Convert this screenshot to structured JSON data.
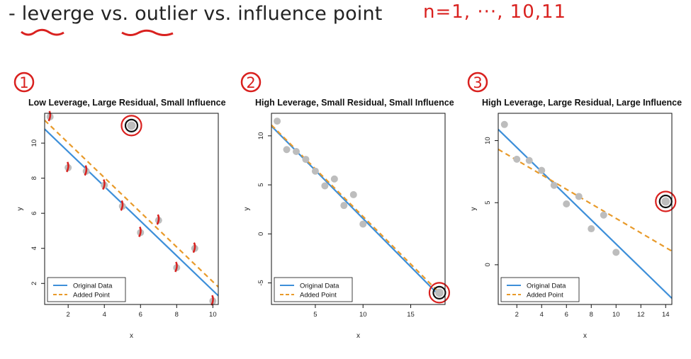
{
  "heading": {
    "dash": "-",
    "word1": "leverge",
    "vs1": "vs.",
    "word2": "outlier",
    "vs2": "vs.",
    "rest": "influence point"
  },
  "handnote": "n=1, ···, 10,11",
  "panel_numbers": [
    "1",
    "2",
    "3"
  ],
  "colors": {
    "original_line": "#3d8fd9",
    "added_line": "#e89a2a",
    "points": "#bdbdbd",
    "annotation": "#d9211f"
  },
  "chart_data": [
    {
      "type": "scatter",
      "title": "Low Leverage, Large Residual, Small Influence",
      "xlabel": "x",
      "ylabel": "y",
      "xlim": [
        0.7,
        10.3
      ],
      "ylim": [
        0.8,
        11.7
      ],
      "xticks": [
        2,
        4,
        6,
        8,
        10
      ],
      "yticks": [
        2,
        4,
        6,
        8,
        10
      ],
      "points": [
        [
          1,
          11.5
        ],
        [
          2,
          8.6
        ],
        [
          3,
          8.4
        ],
        [
          4,
          7.6
        ],
        [
          5,
          6.4
        ],
        [
          6,
          4.9
        ],
        [
          7,
          5.6
        ],
        [
          8,
          2.9
        ],
        [
          9,
          4.0
        ],
        [
          10,
          1.0
        ]
      ],
      "added_point": [
        5.5,
        11.0
      ],
      "lines": {
        "original": {
          "x": [
            0.7,
            10.3
          ],
          "y": [
            10.8,
            1.3
          ]
        },
        "added": {
          "x": [
            0.7,
            10.3
          ],
          "y": [
            11.3,
            1.8
          ]
        }
      },
      "legend": {
        "position": "bottom-left",
        "entries": [
          "Original Data",
          "Added Point"
        ]
      }
    },
    {
      "type": "scatter",
      "title": "High Leverage, Small Residual, Small Influence",
      "xlabel": "x",
      "ylabel": "y",
      "xlim": [
        0.4,
        18.6
      ],
      "ylim": [
        -7.2,
        12.3
      ],
      "xticks": [
        5,
        10,
        15
      ],
      "yticks": [
        -5,
        0,
        5,
        10
      ],
      "points": [
        [
          1,
          11.5
        ],
        [
          2,
          8.6
        ],
        [
          3,
          8.4
        ],
        [
          4,
          7.6
        ],
        [
          5,
          6.4
        ],
        [
          6,
          4.9
        ],
        [
          7,
          5.6
        ],
        [
          8,
          2.9
        ],
        [
          9,
          4.0
        ],
        [
          10,
          1.0
        ]
      ],
      "added_point": [
        18,
        -6
      ],
      "lines": {
        "original": {
          "x": [
            0.4,
            18
          ],
          "y": [
            11.0,
            -6.3
          ]
        },
        "added": {
          "x": [
            0.4,
            18
          ],
          "y": [
            11.1,
            -6.0
          ]
        }
      },
      "legend": {
        "position": "bottom-left",
        "entries": [
          "Original Data",
          "Added Point"
        ]
      }
    },
    {
      "type": "scatter",
      "title": "High Leverage, Large Residual, Large Influence",
      "xlabel": "x",
      "ylabel": "y",
      "xlim": [
        0.5,
        14.5
      ],
      "ylim": [
        -3.2,
        12.2
      ],
      "xticks": [
        2,
        4,
        6,
        8,
        10,
        12,
        14
      ],
      "yticks": [
        0,
        5,
        10
      ],
      "points": [
        [
          1,
          11.3
        ],
        [
          2,
          8.5
        ],
        [
          3,
          8.4
        ],
        [
          4,
          7.6
        ],
        [
          5,
          6.4
        ],
        [
          6,
          4.9
        ],
        [
          7,
          5.5
        ],
        [
          8,
          2.9
        ],
        [
          9,
          4.0
        ],
        [
          10,
          1.0
        ]
      ],
      "added_point": [
        14,
        5.1
      ],
      "lines": {
        "original": {
          "x": [
            0.5,
            14.5
          ],
          "y": [
            10.9,
            -2.7
          ]
        },
        "added": {
          "x": [
            0.5,
            14.5
          ],
          "y": [
            9.3,
            1.1
          ]
        }
      },
      "legend": {
        "position": "bottom-left",
        "entries": [
          "Original Data",
          "Added Point"
        ]
      }
    }
  ]
}
